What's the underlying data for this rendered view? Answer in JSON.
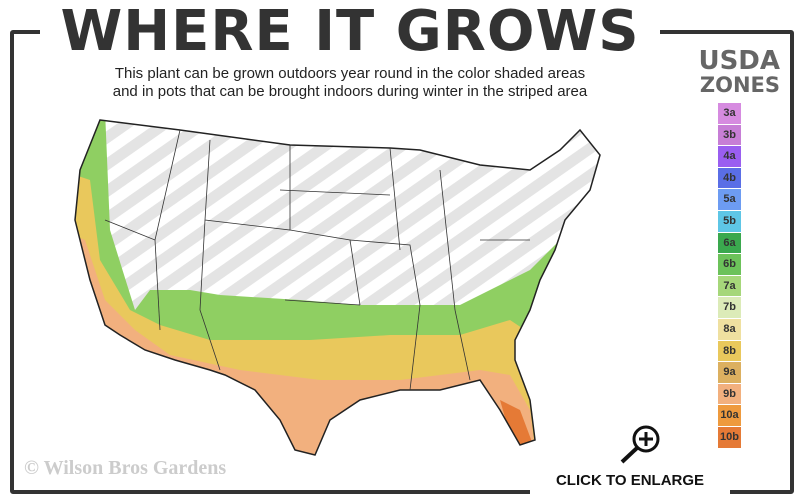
{
  "header": {
    "title": "WHERE IT GROWS",
    "subtitle_line1": "This plant can be grown outdoors year round in the color shaded areas",
    "subtitle_line2": "and in pots that can be brought indoors during winter in the striped area"
  },
  "legend": {
    "title_line1": "USDA",
    "title_line2": "ZONES",
    "zones": [
      {
        "label": "3a",
        "color": "#d68be0"
      },
      {
        "label": "3b",
        "color": "#c77ed6"
      },
      {
        "label": "4a",
        "color": "#9a5ef0"
      },
      {
        "label": "4b",
        "color": "#5a6ee6"
      },
      {
        "label": "5a",
        "color": "#6d9cf2"
      },
      {
        "label": "5b",
        "color": "#5ec6e6"
      },
      {
        "label": "6a",
        "color": "#3aa84e"
      },
      {
        "label": "6b",
        "color": "#6cc25a"
      },
      {
        "label": "7a",
        "color": "#a6d77a"
      },
      {
        "label": "7b",
        "color": "#dcebb8"
      },
      {
        "label": "8a",
        "color": "#efe0a0"
      },
      {
        "label": "8b",
        "color": "#e9c85c"
      },
      {
        "label": "9a",
        "color": "#dcb060"
      },
      {
        "label": "9b",
        "color": "#f2b07e"
      },
      {
        "label": "10a",
        "color": "#ee9a3e"
      },
      {
        "label": "10b",
        "color": "#e57a36"
      }
    ]
  },
  "map": {
    "stripe_meaning": "indoors during winter",
    "icon": "us-map"
  },
  "footer": {
    "copyright": "© Wilson Bros Gardens",
    "enlarge_label": "CLICK TO ENLARGE",
    "enlarge_icon": "zoom-in-icon"
  }
}
